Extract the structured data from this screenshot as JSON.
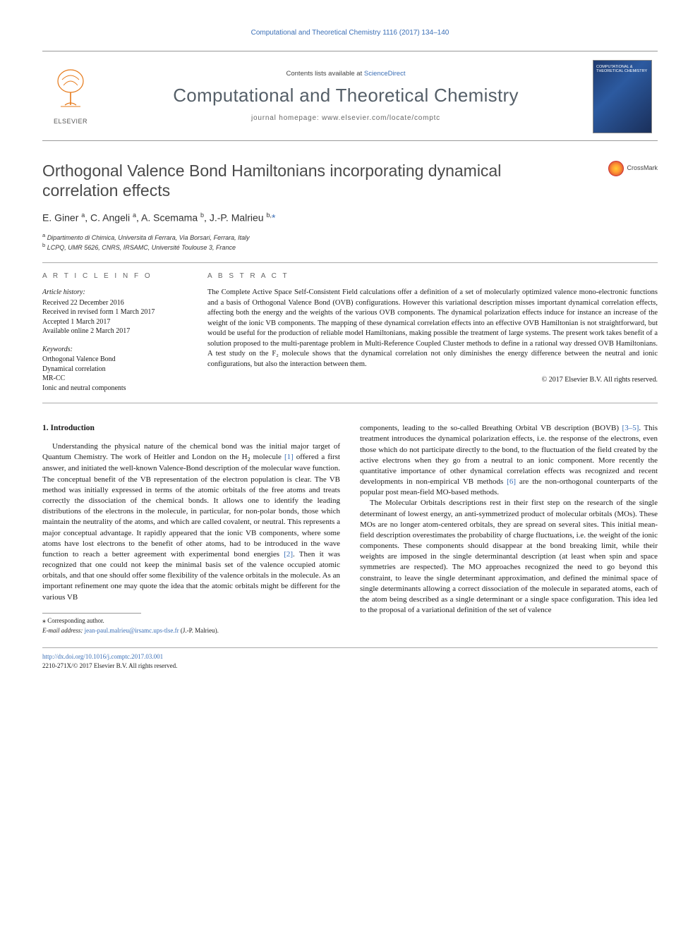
{
  "header": {
    "running_head": "Computational and Theoretical Chemistry 1116 (2017) 134–140",
    "contents_prefix": "Contents lists available at ",
    "contents_link": "ScienceDirect",
    "journal_name": "Computational and Theoretical Chemistry",
    "homepage_prefix": "journal homepage: ",
    "homepage_url": "www.elsevier.com/locate/comptc",
    "publisher": "ELSEVIER",
    "cover_title": "COMPUTATIONAL & THEORETICAL CHEMISTRY"
  },
  "crossmark": {
    "label": "CrossMark"
  },
  "article": {
    "title": "Orthogonal Valence Bond Hamiltonians incorporating dynamical correlation effects",
    "authors_html": "E. Giner <sup>a</sup>, C. Angeli <sup>a</sup>, A. Scemama <sup>b</sup>, J.-P. Malrieu <sup>b,</sup><span class='corr'>*</span>",
    "affiliations": [
      "a Dipartimento di Chimica, Universita di Ferrara, Via Borsari, Ferrara, Italy",
      "b LCPQ, UMR 5626, CNRS, IRSAMC, Université Toulouse 3, France"
    ]
  },
  "info": {
    "section_label": "A R T I C L E   I N F O",
    "history_label": "Article history:",
    "history": [
      "Received 22 December 2016",
      "Received in revised form 1 March 2017",
      "Accepted 1 March 2017",
      "Available online 2 March 2017"
    ],
    "keywords_label": "Keywords:",
    "keywords": [
      "Orthogonal Valence Bond",
      "Dynamical correlation",
      "MR-CC",
      "Ionic and neutral components"
    ]
  },
  "abstract": {
    "section_label": "A B S T R A C T",
    "text": "The Complete Active Space Self-Consistent Field calculations offer a definition of a set of molecularly optimized valence mono-electronic functions and a basis of Orthogonal Valence Bond (OVB) configurations. However this variational description misses important dynamical correlation effects, affecting both the energy and the weights of the various OVB components. The dynamical polarization effects induce for instance an increase of the weight of the ionic VB components. The mapping of these dynamical correlation effects into an effective OVB Hamiltonian is not straightforward, but would be useful for the production of reliable model Hamiltonians, making possible the treatment of large systems. The present work takes benefit of a solution proposed to the multi-parentage problem in Multi-Reference Coupled Cluster methods to define in a rational way dressed OVB Hamiltonians. A test study on the F₂ molecule shows that the dynamical correlation not only diminishes the energy difference between the neutral and ionic configurations, but also the interaction between them.",
    "copyright": "© 2017 Elsevier B.V. All rights reserved."
  },
  "body": {
    "section_number": "1.",
    "section_title": "Introduction",
    "col1_p1": "Understanding the physical nature of the chemical bond was the initial major target of Quantum Chemistry. The work of Heitler and London on the H₂ molecule [1] offered a first answer, and initiated the well-known Valence-Bond description of the molecular wave function. The conceptual benefit of the VB representation of the electron population is clear. The VB method was initially expressed in terms of the atomic orbitals of the free atoms and treats correctly the dissociation of the chemical bonds. It allows one to identify the leading distributions of the electrons in the molecule, in particular, for non-polar bonds, those which maintain the neutrality of the atoms, and which are called covalent, or neutral. This represents a major conceptual advantage. It rapidly appeared that the ionic VB components, where some atoms have lost electrons to the benefit of other atoms, had to be introduced in the wave function to reach a better agreement with experimental bond energies [2]. Then it was recognized that one could not keep the minimal basis set of the valence occupied atomic orbitals, and that one should offer some flexibility of the valence orbitals in the molecule. As an important refinement one may quote the idea that the atomic orbitals might be different for the various VB",
    "col2_p1": "components, leading to the so-called Breathing Orbital VB description (BOVB) [3–5]. This treatment introduces the dynamical polarization effects, i.e. the response of the electrons, even those which do not participate directly to the bond, to the fluctuation of the field created by the active electrons when they go from a neutral to an ionic component. More recently the quantitative importance of other dynamical correlation effects was recognized and recent developments in non-empirical VB methods [6] are the non-orthogonal counterparts of the popular post mean-field MO-based methods.",
    "col2_p2": "The Molecular Orbitals descriptions rest in their first step on the research of the single determinant of lowest energy, an anti-symmetrized product of molecular orbitals (MOs). These MOs are no longer atom-centered orbitals, they are spread on several sites. This initial mean-field description overestimates the probability of charge fluctuations, i.e. the weight of the ionic components. These components should disappear at the bond breaking limit, while their weights are imposed in the single determinantal description (at least when spin and space symmetries are respected). The MO approaches recognized the need to go beyond this constraint, to leave the single determinant approximation, and defined the minimal space of single determinants allowing a correct dissociation of the molecule in separated atoms, each of the atom being described as a single determinant or a single space configuration. This idea led to the proposal of a variational definition of the set of valence"
  },
  "footer": {
    "corr_label": "* Corresponding author.",
    "email_label": "E-mail address: ",
    "email": "jean-paul.malrieu@irsamc.ups-tlse.fr",
    "email_who": " (J.-P. Malrieu).",
    "doi": "http://dx.doi.org/10.1016/j.comptc.2017.03.001",
    "issn_line": "2210-271X/© 2017 Elsevier B.V. All rights reserved."
  },
  "refs": {
    "r1": "[1]",
    "r2": "[2]",
    "r35": "[3–5]",
    "r6": "[6]"
  },
  "colors": {
    "link": "#3b6fb6",
    "text": "#1a1a1a",
    "muted": "#666",
    "rule": "#aaa",
    "journal_title": "#555f68",
    "cover_bg": "#1e3a6e"
  }
}
